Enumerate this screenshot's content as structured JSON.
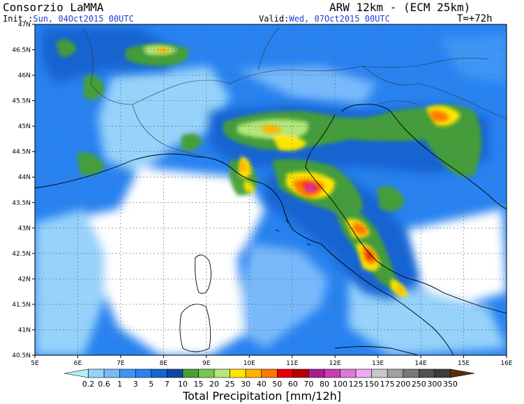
{
  "header": {
    "organization": "Consorzio LaMMA",
    "model": "ARW 12km - (ECM 25km)",
    "init_label": "Init.:",
    "init_value": "Sun, 04Oct2015 00UTC",
    "valid_label": "Valid:",
    "valid_value": "Wed, 07Oct2015 00UTC",
    "forecast_step": "T=+72h"
  },
  "map": {
    "lon_ticks": [
      "5E",
      "6E",
      "7E",
      "8E",
      "9E",
      "10E",
      "11E",
      "12E",
      "13E",
      "14E",
      "15E",
      "16E"
    ],
    "lat_ticks": [
      "47N",
      "46.5N",
      "46N",
      "45.5N",
      "45N",
      "44.5N",
      "44N",
      "43.5N",
      "43N",
      "42.5N",
      "42N",
      "41.5N",
      "41N",
      "40.5N"
    ]
  },
  "colorbar": {
    "title": "Total Precipitation [mm/12h]",
    "labels": [
      "0.2",
      "0.6",
      "1",
      "3",
      "5",
      "7",
      "10",
      "15",
      "20",
      "25",
      "30",
      "40",
      "50",
      "60",
      "70",
      "80",
      "100",
      "125",
      "150",
      "175",
      "200",
      "250",
      "300",
      "350"
    ],
    "colors": [
      "#b4f0fa",
      "#96d2fa",
      "#78b9fa",
      "#3c96f5",
      "#2882f0",
      "#1464d2",
      "#0f46a5",
      "#46a032",
      "#78c850",
      "#b4e678",
      "#ffe600",
      "#ffb400",
      "#ff7800",
      "#e60000",
      "#b40000",
      "#aa1e8c",
      "#c83cb4",
      "#dc78d2",
      "#f0aaf0",
      "#c8c8c8",
      "#a0a0a0",
      "#787878",
      "#505050",
      "#3c3c3c",
      "#5a2d0a"
    ]
  }
}
